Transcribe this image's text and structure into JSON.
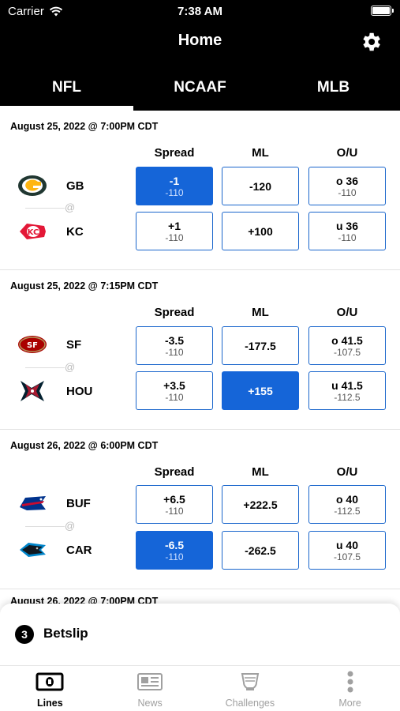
{
  "status_bar": {
    "carrier": "Carrier",
    "time": "7:38 AM"
  },
  "nav": {
    "title": "Home"
  },
  "tabs": [
    {
      "label": "NFL"
    },
    {
      "label": "NCAAF"
    },
    {
      "label": "MLB"
    }
  ],
  "active_tab": "NFL",
  "column_headers": {
    "spread": "Spread",
    "ml": "ML",
    "ou": "O/U"
  },
  "at_symbol": "@",
  "games": [
    {
      "date": "August 25, 2022 @ 7:00PM CDT",
      "away": {
        "abbr": "GB",
        "logo": "packers-logo",
        "spread": "-1",
        "spread_odds": "-110",
        "ml": "-120",
        "ou": "o 36",
        "ou_odds": "-110"
      },
      "home": {
        "abbr": "KC",
        "logo": "chiefs-logo",
        "spread": "+1",
        "spread_odds": "-110",
        "ml": "+100",
        "ou": "u 36",
        "ou_odds": "-110"
      }
    },
    {
      "date": "August 25, 2022 @ 7:15PM CDT",
      "away": {
        "abbr": "SF",
        "logo": "49ers-logo",
        "spread": "-3.5",
        "spread_odds": "-110",
        "ml": "-177.5",
        "ou": "o 41.5",
        "ou_odds": "-107.5"
      },
      "home": {
        "abbr": "HOU",
        "logo": "texans-logo",
        "spread": "+3.5",
        "spread_odds": "-110",
        "ml": "+155",
        "ou": "u 41.5",
        "ou_odds": "-112.5"
      }
    },
    {
      "date": "August 26, 2022 @ 6:00PM CDT",
      "away": {
        "abbr": "BUF",
        "logo": "bills-logo",
        "spread": "+6.5",
        "spread_odds": "-110",
        "ml": "+222.5",
        "ou": "o 40",
        "ou_odds": "-112.5"
      },
      "home": {
        "abbr": "CAR",
        "logo": "panthers-logo",
        "spread": "-6.5",
        "spread_odds": "-110",
        "ml": "-262.5",
        "ou": "u 40",
        "ou_odds": "-107.5"
      }
    }
  ],
  "selected_bets": [
    "GB spread",
    "HOU ml",
    "CAR spread"
  ],
  "partial_next_date": "August 26, 2022 @ 7:00PM CDT",
  "betslip": {
    "count": "3",
    "label": "Betslip"
  },
  "bottom_nav": [
    {
      "label": "Lines",
      "icon": "cash-icon"
    },
    {
      "label": "News",
      "icon": "newspaper-icon"
    },
    {
      "label": "Challenges",
      "icon": "trophy-icon"
    },
    {
      "label": "More",
      "icon": "more-vertical-icon"
    }
  ],
  "colors": {
    "accent": "#1565d8",
    "header_bg": "#000000",
    "inactive_nav": "#a0a0a0"
  }
}
